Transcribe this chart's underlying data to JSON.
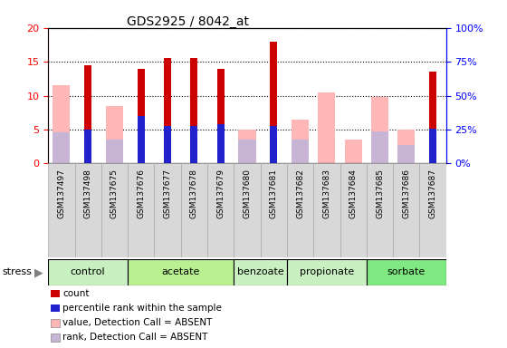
{
  "title": "GDS2925 / 8042_at",
  "samples": [
    "GSM137497",
    "GSM137498",
    "GSM137675",
    "GSM137676",
    "GSM137677",
    "GSM137678",
    "GSM137679",
    "GSM137680",
    "GSM137681",
    "GSM137682",
    "GSM137683",
    "GSM137684",
    "GSM137685",
    "GSM137686",
    "GSM137687"
  ],
  "count_values": [
    0,
    14.5,
    0,
    14.0,
    15.5,
    15.5,
    14.0,
    0,
    18.0,
    0,
    0,
    0,
    0,
    0,
    13.5
  ],
  "percentile_vals": [
    0,
    5.0,
    0,
    7.0,
    5.5,
    5.5,
    5.8,
    0,
    5.6,
    0,
    0,
    0,
    0,
    0,
    5.2
  ],
  "value_absent": [
    11.5,
    0,
    8.5,
    0,
    0,
    0,
    0,
    5.0,
    0,
    6.5,
    10.5,
    3.5,
    9.8,
    5.0,
    0
  ],
  "rank_absent": [
    23.0,
    0,
    17.5,
    0,
    0,
    0,
    0,
    17.5,
    0,
    17.5,
    0,
    0,
    23.5,
    13.5,
    0
  ],
  "group_names": [
    "control",
    "acetate",
    "benzoate",
    "propionate",
    "sorbate"
  ],
  "group_starts": [
    0,
    3,
    7,
    9,
    12
  ],
  "group_ends": [
    3,
    7,
    9,
    12,
    15
  ],
  "group_colors": [
    "#c8f0c0",
    "#b8f090",
    "#c8f0c0",
    "#c8f0c0",
    "#80e880"
  ],
  "ylim_left": [
    0,
    20
  ],
  "ylim_right": [
    0,
    100
  ],
  "yticks_left": [
    0,
    5,
    10,
    15,
    20
  ],
  "yticks_right": [
    0,
    25,
    50,
    75,
    100
  ],
  "color_count": "#cc0000",
  "color_percentile": "#2222cc",
  "color_value_absent": "#ffb6b6",
  "color_rank_absent": "#c8b4d4",
  "legend_items": [
    {
      "label": "count",
      "color": "#cc0000"
    },
    {
      "label": "percentile rank within the sample",
      "color": "#2222cc"
    },
    {
      "label": "value, Detection Call = ABSENT",
      "color": "#ffb6b6"
    },
    {
      "label": "rank, Detection Call = ABSENT",
      "color": "#c8b4d4"
    }
  ]
}
